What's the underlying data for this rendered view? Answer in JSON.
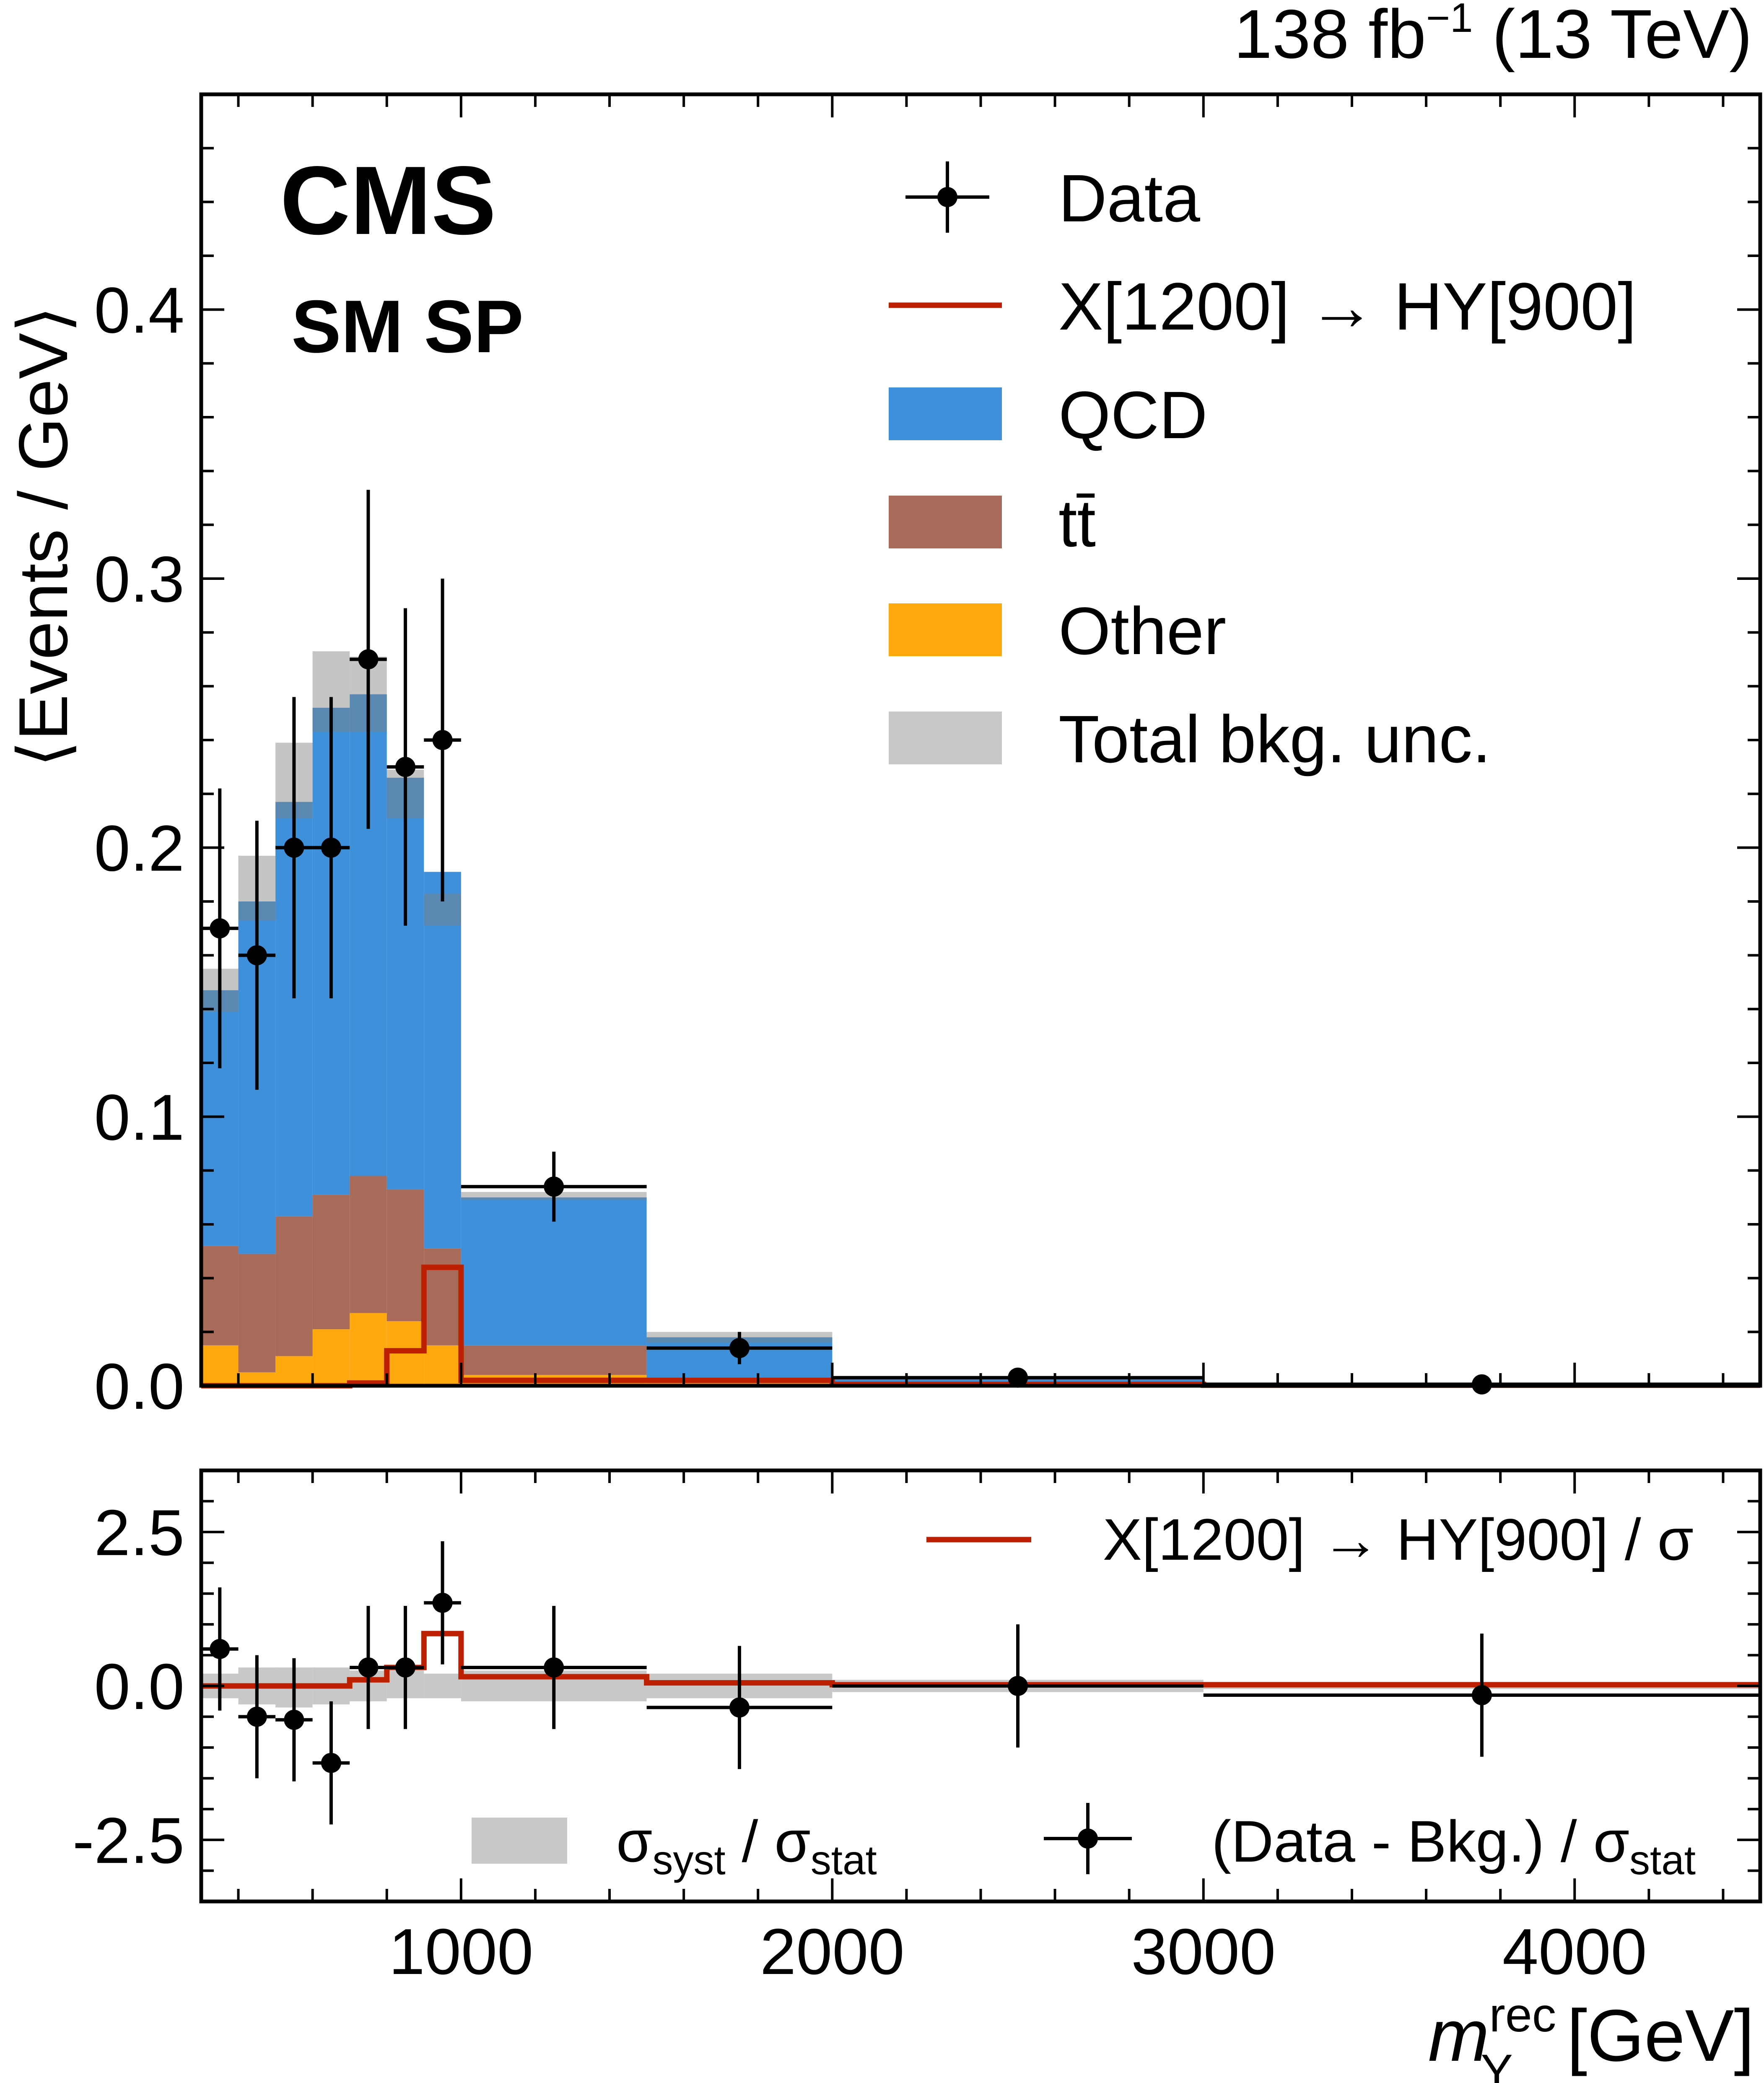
{
  "header": {
    "lumi_label": "138 fb",
    "lumi_exp": "−1",
    "energy": "(13 TeV)"
  },
  "labels": {
    "experiment": "CMS",
    "region": "SM SP"
  },
  "chart_data": [
    {
      "type": "bar",
      "stacked": true,
      "ylabel": "⟨Events / GeV⟩",
      "ylim": [
        0,
        0.48
      ],
      "xlim": [
        300,
        4500
      ],
      "yticks": [
        "0.0",
        "0.1",
        "0.2",
        "0.3",
        "0.4"
      ],
      "bin_edges": [
        300,
        400,
        500,
        600,
        700,
        800,
        900,
        1000,
        1500,
        2000,
        3000,
        4500
      ],
      "series": [
        {
          "name": "QCD",
          "color": "#3f90da",
          "values": [
            0.095,
            0.131,
            0.154,
            0.181,
            0.179,
            0.153,
            0.14,
            0.055,
            0.015,
            0.002,
            0.0003
          ]
        },
        {
          "name": "tt̄",
          "color": "#a96b59",
          "values": [
            0.037,
            0.044,
            0.052,
            0.05,
            0.051,
            0.049,
            0.036,
            0.011,
            0.002,
            0.0005,
            0.0001
          ]
        },
        {
          "name": "Other",
          "color": "#ffa90e",
          "values": [
            0.015,
            0.005,
            0.011,
            0.021,
            0.027,
            0.024,
            0.015,
            0.004,
            0.001,
            0.0002,
            0.0001
          ]
        }
      ],
      "bkg_unc": {
        "name": "Total bkg. unc.",
        "color": "#c8c8c8",
        "down": [
          0.139,
          0.173,
          0.211,
          0.243,
          0.243,
          0.211,
          0.171,
          0.069,
          0.016,
          0.002,
          0.0003
        ],
        "up": [
          0.155,
          0.197,
          0.239,
          0.273,
          0.271,
          0.229,
          0.183,
          0.072,
          0.02,
          0.003,
          0.0006
        ]
      },
      "signal": {
        "name": "X[1200] → HY[900]",
        "color": "#bd1f01",
        "values": [
          0,
          0,
          0,
          0,
          0.001,
          0.013,
          0.044,
          0.002,
          0.002,
          0.0005,
          0.0002
        ]
      },
      "data": {
        "name": "Data",
        "x": [
          350,
          450,
          550,
          650,
          750,
          850,
          950,
          1250,
          1750,
          2500,
          3750
        ],
        "y": [
          0.17,
          0.16,
          0.2,
          0.2,
          0.27,
          0.23,
          0.24,
          0.074,
          0.014,
          0.003,
          0.0005
        ],
        "yerr": [
          0.052,
          0.05,
          0.056,
          0.056,
          0.063,
          0.059,
          0.06,
          0.013,
          0.006,
          0.0018,
          0.0007
        ]
      },
      "legend": {
        "placement": "top-right",
        "entries": [
          "Data",
          "X[1200] → HY[900]",
          "QCD",
          "tt̄",
          "Other",
          "Total bkg. unc."
        ]
      }
    },
    {
      "type": "scatter",
      "ylim": [
        -3.5,
        3.5
      ],
      "yticks": [
        "-2.5",
        "0.0",
        "2.5"
      ],
      "xticks": [
        "1000",
        "2000",
        "3000",
        "4000"
      ],
      "xlabel_main": "m",
      "xlabel_sup": "rec",
      "xlabel_sub": "Y",
      "xlabel_unit": "[GeV]",
      "bin_edges": [
        300,
        400,
        500,
        600,
        700,
        800,
        900,
        1000,
        1500,
        2000,
        3000,
        4500
      ],
      "syst_band": {
        "down": [
          -0.2,
          -0.3,
          -0.35,
          -0.3,
          -0.25,
          -0.2,
          -0.2,
          -0.25,
          -0.2,
          -0.1,
          -0.05
        ],
        "up": [
          0.2,
          0.3,
          0.3,
          0.3,
          0.25,
          0.25,
          0.2,
          0.25,
          0.2,
          0.1,
          0.05
        ]
      },
      "signal_ratio": [
        0.0,
        0.0,
        0.0,
        0.0,
        0.1,
        0.3,
        0.85,
        0.15,
        0.05,
        0.02,
        0.02
      ],
      "pulls": {
        "x": [
          350,
          450,
          550,
          650,
          750,
          850,
          950,
          1250,
          1750,
          2500,
          3750
        ],
        "y": [
          0.6,
          -0.5,
          -0.55,
          -1.25,
          0.3,
          0.3,
          1.35,
          0.3,
          -0.35,
          0.0,
          -0.15
        ],
        "yerr": [
          1.0,
          1.0,
          1.0,
          1.0,
          1.0,
          1.0,
          1.0,
          1.0,
          1.0,
          1.0,
          1.0
        ]
      },
      "legend": {
        "signal": "X[1200] → HY[900] / σ",
        "band_main": "σ",
        "band_sub": "syst",
        "band_mid": " / σ",
        "band_sub2": "stat",
        "pull_main": "(Data - Bkg.) / σ",
        "pull_sub": "stat"
      }
    }
  ]
}
